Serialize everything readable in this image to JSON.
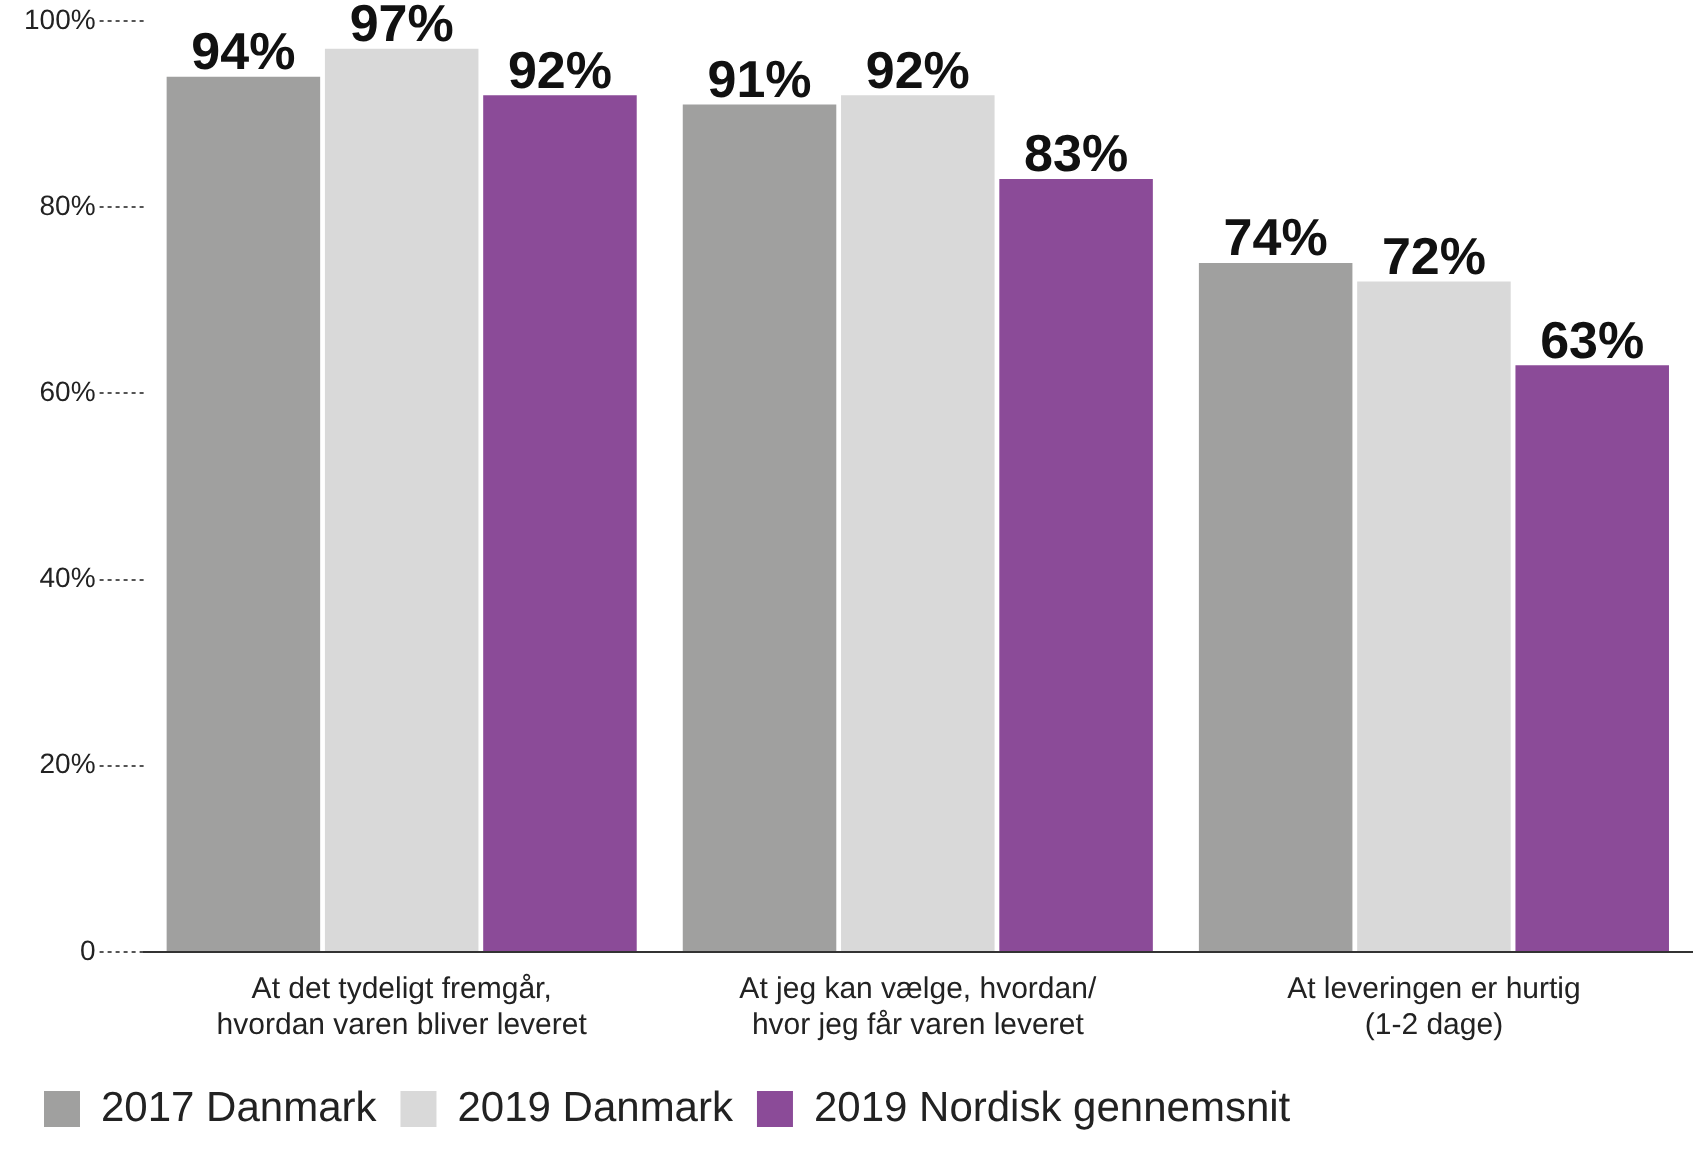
{
  "chart_data": {
    "type": "bar",
    "categories": [
      "At det tydeligt fremgår,\nhvordan varen bliver leveret",
      "At jeg kan vælge, hvordan/\nhvor jeg får varen leveret",
      "At leveringen er hurtig\n(1-2 dage)"
    ],
    "series": [
      {
        "name": "2017 Danmark",
        "color": "#a0a09f",
        "values": [
          94,
          91,
          74
        ],
        "value_labels": [
          "94%",
          "91%",
          "74%"
        ]
      },
      {
        "name": "2019 Danmark",
        "color": "#d9d9d9",
        "values": [
          97,
          92,
          72
        ],
        "value_labels": [
          "97%",
          "92%",
          "72%"
        ]
      },
      {
        "name": "2019 Nordisk gennemsnit",
        "color": "#8b4b98",
        "values": [
          92,
          83,
          63
        ],
        "value_labels": [
          "92%",
          "83%",
          "63%"
        ]
      }
    ],
    "ylim": [
      0,
      100
    ],
    "yticks": [
      {
        "value": 0,
        "label": "0"
      },
      {
        "value": 20,
        "label": "20%"
      },
      {
        "value": 40,
        "label": "40%"
      },
      {
        "value": 60,
        "label": "60%"
      },
      {
        "value": 80,
        "label": "80%"
      },
      {
        "value": 100,
        "label": "100%"
      }
    ],
    "grid": false,
    "legend": "bottom left"
  }
}
